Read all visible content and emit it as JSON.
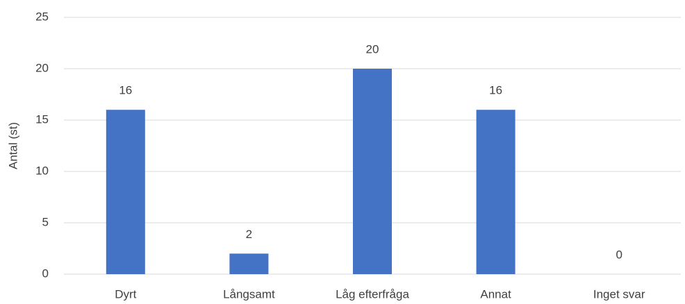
{
  "chart_data": {
    "type": "bar",
    "y_label": "Antal (st)",
    "categories": [
      "Dyrt",
      "Långsamt",
      "Låg efterfråga",
      "Annat",
      "Inget svar"
    ],
    "values": [
      16,
      2,
      20,
      16,
      0
    ],
    "color": "#4472c4",
    "ylim": [
      0,
      25
    ],
    "yticks": [
      0,
      5,
      10,
      15,
      20,
      25
    ],
    "grid": true
  }
}
